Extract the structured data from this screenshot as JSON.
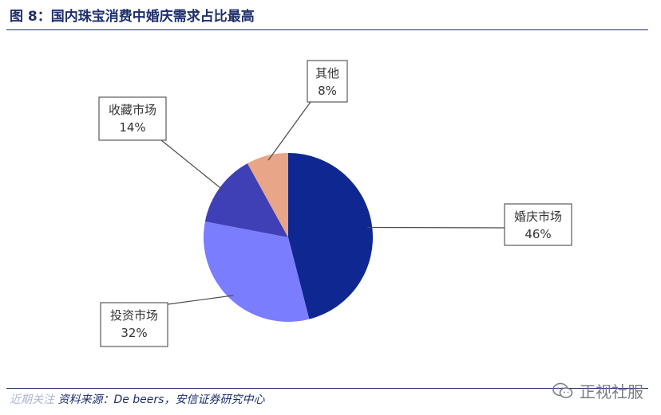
{
  "figure": {
    "title": "图 8：国内珠宝消费中婚庆需求占比最高"
  },
  "chart_data": {
    "type": "pie",
    "title": "",
    "categories": [
      "婚庆市场",
      "投资市场",
      "收藏市场",
      "其他"
    ],
    "values": [
      46,
      32,
      14,
      8
    ],
    "labels": [
      "46%",
      "32%",
      "14%",
      "8%"
    ],
    "colors": [
      "#0f2891",
      "#7b7dff",
      "#3f40b6",
      "#e9a587"
    ],
    "start": "12 o'clock, clockwise",
    "legend": "none (callout labels)"
  },
  "footer": {
    "source_label": "资料来源：",
    "source_text": "De beers，安信证券研究中心",
    "watermark_text": "近期关注",
    "wechat_name": "正视社服"
  }
}
